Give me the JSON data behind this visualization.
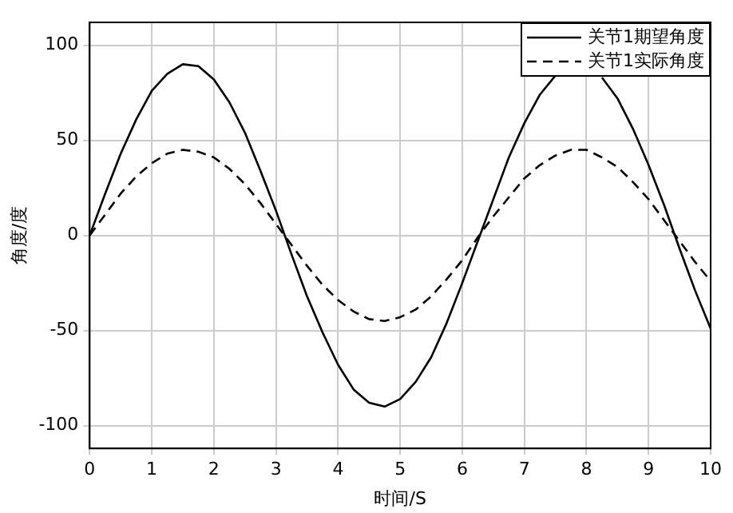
{
  "chart_data": {
    "type": "line",
    "xlabel": "时间/S",
    "ylabel": "角度/度",
    "x": [
      0,
      0.25,
      0.5,
      0.75,
      1,
      1.25,
      1.5,
      1.75,
      2,
      2.25,
      2.5,
      2.75,
      3,
      3.25,
      3.5,
      3.75,
      4,
      4.25,
      4.5,
      4.75,
      5,
      5.25,
      5.5,
      5.75,
      6,
      6.25,
      6.5,
      6.75,
      7,
      7.25,
      7.5,
      7.75,
      8,
      8.25,
      8.5,
      8.75,
      9,
      9.25,
      9.5,
      9.75,
      10
    ],
    "series": [
      {
        "name": "关节1期望角度",
        "color": "#000000",
        "line_style": "solid",
        "values": [
          0,
          22,
          43,
          61,
          76,
          85,
          90,
          89,
          82,
          70,
          54,
          34,
          13,
          -10,
          -32,
          -51,
          -68,
          -81,
          -88,
          -90,
          -86,
          -77,
          -64,
          -46,
          -25,
          -3,
          19,
          41,
          59,
          74,
          84,
          null,
          null,
          83,
          72,
          56,
          37,
          16,
          -7,
          -29,
          -49
        ]
      },
      {
        "name": "关节1实际角度",
        "color": "#000000",
        "line_style": "dashed",
        "values": [
          0,
          11,
          22,
          31,
          38,
          43,
          45,
          44,
          41,
          35,
          27,
          17,
          6,
          -5,
          -16,
          -26,
          -34,
          -40,
          -44,
          -45,
          -43,
          -39,
          -32,
          -23,
          -13,
          -1,
          10,
          20,
          30,
          37,
          42,
          45,
          45,
          41,
          36,
          28,
          19,
          8,
          -3,
          -14,
          -24
        ]
      }
    ],
    "xlim": [
      0,
      10
    ],
    "xticks": [
      0,
      1,
      2,
      3,
      4,
      5,
      6,
      7,
      8,
      9,
      10
    ],
    "ylim": [
      -112,
      112
    ],
    "yticks": [
      -100,
      -50,
      0,
      50,
      100
    ],
    "grid": true,
    "legend": "top right",
    "marker": "none"
  }
}
